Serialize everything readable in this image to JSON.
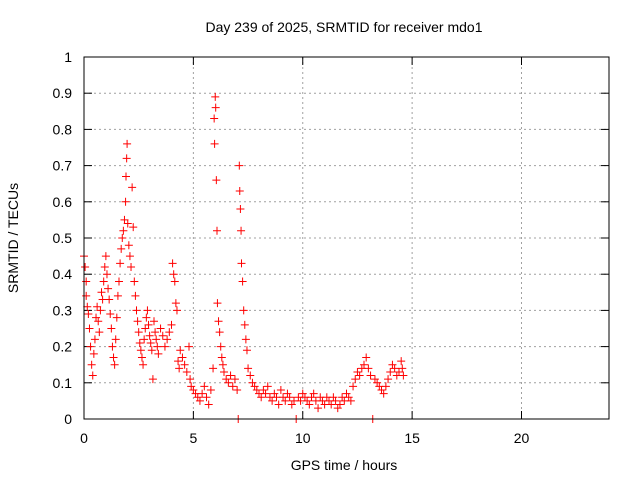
{
  "chart_data": {
    "type": "scatter",
    "title": "Day 239 of 2025, SRMTID for receiver mdo1",
    "xlabel": "GPS time / hours",
    "ylabel": "SRMTID / TECUs",
    "xlim": [
      0,
      24
    ],
    "ylim": [
      0,
      1
    ],
    "x_ticks": [
      0,
      5,
      10,
      15,
      20
    ],
    "x_tick_labels": [
      "0",
      "5",
      "10",
      "15",
      "20"
    ],
    "y_ticks": [
      0,
      0.1,
      0.2,
      0.3,
      0.4,
      0.5,
      0.6,
      0.7,
      0.8,
      0.9,
      1
    ],
    "y_tick_labels": [
      "0",
      "0.1",
      "0.2",
      "0.3",
      "0.4",
      "0.5",
      "0.6",
      "0.7",
      "0.8",
      "0.9",
      "1"
    ],
    "grid": true,
    "marker": "+",
    "color": "#ff0000",
    "series": [
      {
        "points": [
          [
            0.0,
            0.45
          ],
          [
            0.05,
            0.42
          ],
          [
            0.1,
            0.38
          ],
          [
            0.1,
            0.34
          ],
          [
            0.15,
            0.31
          ],
          [
            0.2,
            0.29
          ],
          [
            0.25,
            0.25
          ],
          [
            0.3,
            0.2
          ],
          [
            0.35,
            0.15
          ],
          [
            0.4,
            0.12
          ],
          [
            0.45,
            0.18
          ],
          [
            0.5,
            0.22
          ],
          [
            0.55,
            0.28
          ],
          [
            0.6,
            0.31
          ],
          [
            0.65,
            0.27
          ],
          [
            0.7,
            0.24
          ],
          [
            0.75,
            0.3
          ],
          [
            0.8,
            0.35
          ],
          [
            0.85,
            0.33
          ],
          [
            0.9,
            0.38
          ],
          [
            0.95,
            0.42
          ],
          [
            1.0,
            0.45
          ],
          [
            1.05,
            0.4
          ],
          [
            1.1,
            0.36
          ],
          [
            1.15,
            0.33
          ],
          [
            1.2,
            0.29
          ],
          [
            1.25,
            0.25
          ],
          [
            1.3,
            0.2
          ],
          [
            1.35,
            0.17
          ],
          [
            1.4,
            0.15
          ],
          [
            1.45,
            0.22
          ],
          [
            1.5,
            0.28
          ],
          [
            1.55,
            0.34
          ],
          [
            1.6,
            0.38
          ],
          [
            1.65,
            0.43
          ],
          [
            1.7,
            0.47
          ],
          [
            1.75,
            0.5
          ],
          [
            1.8,
            0.52
          ],
          [
            1.85,
            0.55
          ],
          [
            1.9,
            0.6
          ],
          [
            1.92,
            0.67
          ],
          [
            1.95,
            0.72
          ],
          [
            1.97,
            0.76
          ],
          [
            2.0,
            0.54
          ],
          [
            2.05,
            0.48
          ],
          [
            2.1,
            0.45
          ],
          [
            2.15,
            0.42
          ],
          [
            2.2,
            0.64
          ],
          [
            2.25,
            0.53
          ],
          [
            2.3,
            0.38
          ],
          [
            2.35,
            0.34
          ],
          [
            2.4,
            0.3
          ],
          [
            2.45,
            0.27
          ],
          [
            2.5,
            0.24
          ],
          [
            2.55,
            0.21
          ],
          [
            2.6,
            0.19
          ],
          [
            2.65,
            0.17
          ],
          [
            2.7,
            0.15
          ],
          [
            2.75,
            0.22
          ],
          [
            2.8,
            0.25
          ],
          [
            2.85,
            0.28
          ],
          [
            2.9,
            0.3
          ],
          [
            2.95,
            0.26
          ],
          [
            3.0,
            0.23
          ],
          [
            3.05,
            0.21
          ],
          [
            3.1,
            0.19
          ],
          [
            3.15,
            0.11
          ],
          [
            3.2,
            0.27
          ],
          [
            3.25,
            0.24
          ],
          [
            3.3,
            0.22
          ],
          [
            3.35,
            0.2
          ],
          [
            3.4,
            0.18
          ],
          [
            3.5,
            0.25
          ],
          [
            3.6,
            0.23
          ],
          [
            3.7,
            0.2
          ],
          [
            3.8,
            0.22
          ],
          [
            3.9,
            0.24
          ],
          [
            4.0,
            0.26
          ],
          [
            4.05,
            0.43
          ],
          [
            4.1,
            0.4
          ],
          [
            4.15,
            0.38
          ],
          [
            4.2,
            0.32
          ],
          [
            4.25,
            0.3
          ],
          [
            4.3,
            0.16
          ],
          [
            4.35,
            0.14
          ],
          [
            4.4,
            0.19
          ],
          [
            4.5,
            0.17
          ],
          [
            4.6,
            0.15
          ],
          [
            4.7,
            0.13
          ],
          [
            4.8,
            0.2
          ],
          [
            4.85,
            0.11
          ],
          [
            4.9,
            0.09
          ],
          [
            5.0,
            0.08
          ],
          [
            5.1,
            0.07
          ],
          [
            5.2,
            0.06
          ],
          [
            5.3,
            0.05
          ],
          [
            5.4,
            0.07
          ],
          [
            5.5,
            0.09
          ],
          [
            5.6,
            0.06
          ],
          [
            5.7,
            0.04
          ],
          [
            5.8,
            0.08
          ],
          [
            5.9,
            0.14
          ],
          [
            5.95,
            0.83
          ],
          [
            5.97,
            0.76
          ],
          [
            6.0,
            0.89
          ],
          [
            6.02,
            0.86
          ],
          [
            6.05,
            0.66
          ],
          [
            6.08,
            0.52
          ],
          [
            6.1,
            0.32
          ],
          [
            6.15,
            0.27
          ],
          [
            6.2,
            0.24
          ],
          [
            6.25,
            0.2
          ],
          [
            6.3,
            0.17
          ],
          [
            6.35,
            0.15
          ],
          [
            6.4,
            0.13
          ],
          [
            6.5,
            0.11
          ],
          [
            6.6,
            0.1
          ],
          [
            6.7,
            0.12
          ],
          [
            6.8,
            0.09
          ],
          [
            6.9,
            0.11
          ],
          [
            7.0,
            0.08
          ],
          [
            7.05,
            0.0
          ],
          [
            7.1,
            0.7
          ],
          [
            7.12,
            0.63
          ],
          [
            7.15,
            0.58
          ],
          [
            7.18,
            0.52
          ],
          [
            7.2,
            0.43
          ],
          [
            7.25,
            0.38
          ],
          [
            7.3,
            0.3
          ],
          [
            7.35,
            0.26
          ],
          [
            7.4,
            0.22
          ],
          [
            7.45,
            0.19
          ],
          [
            7.5,
            0.14
          ],
          [
            7.6,
            0.12
          ],
          [
            7.7,
            0.1
          ],
          [
            7.8,
            0.09
          ],
          [
            7.9,
            0.08
          ],
          [
            8.0,
            0.07
          ],
          [
            8.1,
            0.06
          ],
          [
            8.2,
            0.08
          ],
          [
            8.3,
            0.07
          ],
          [
            8.4,
            0.09
          ],
          [
            8.5,
            0.06
          ],
          [
            8.6,
            0.05
          ],
          [
            8.7,
            0.07
          ],
          [
            8.8,
            0.06
          ],
          [
            8.9,
            0.04
          ],
          [
            9.0,
            0.08
          ],
          [
            9.1,
            0.06
          ],
          [
            9.2,
            0.05
          ],
          [
            9.3,
            0.07
          ],
          [
            9.4,
            0.06
          ],
          [
            9.5,
            0.04
          ],
          [
            9.6,
            0.05
          ],
          [
            9.7,
            0.0
          ],
          [
            9.8,
            0.06
          ],
          [
            9.9,
            0.05
          ],
          [
            10.0,
            0.07
          ],
          [
            10.1,
            0.06
          ],
          [
            10.2,
            0.05
          ],
          [
            10.3,
            0.04
          ],
          [
            10.4,
            0.06
          ],
          [
            10.5,
            0.07
          ],
          [
            10.6,
            0.05
          ],
          [
            10.7,
            0.03
          ],
          [
            10.8,
            0.06
          ],
          [
            10.9,
            0.05
          ],
          [
            11.0,
            0.04
          ],
          [
            11.1,
            0.06
          ],
          [
            11.2,
            0.05
          ],
          [
            11.3,
            0.04
          ],
          [
            11.4,
            0.06
          ],
          [
            11.5,
            0.05
          ],
          [
            11.6,
            0.03
          ],
          [
            11.7,
            0.04
          ],
          [
            11.8,
            0.06
          ],
          [
            11.9,
            0.05
          ],
          [
            12.0,
            0.07
          ],
          [
            12.1,
            0.06
          ],
          [
            12.2,
            0.05
          ],
          [
            12.3,
            0.09
          ],
          [
            12.4,
            0.11
          ],
          [
            12.5,
            0.13
          ],
          [
            12.6,
            0.12
          ],
          [
            12.7,
            0.14
          ],
          [
            12.8,
            0.15
          ],
          [
            12.9,
            0.17
          ],
          [
            13.0,
            0.14
          ],
          [
            13.1,
            0.12
          ],
          [
            13.2,
            0.0
          ],
          [
            13.3,
            0.11
          ],
          [
            13.4,
            0.1
          ],
          [
            13.5,
            0.09
          ],
          [
            13.6,
            0.08
          ],
          [
            13.7,
            0.07
          ],
          [
            13.8,
            0.09
          ],
          [
            13.9,
            0.11
          ],
          [
            14.0,
            0.13
          ],
          [
            14.1,
            0.15
          ],
          [
            14.2,
            0.14
          ],
          [
            14.3,
            0.12
          ],
          [
            14.4,
            0.13
          ],
          [
            14.5,
            0.16
          ],
          [
            14.55,
            0.14
          ],
          [
            14.6,
            0.12
          ]
        ]
      }
    ]
  }
}
